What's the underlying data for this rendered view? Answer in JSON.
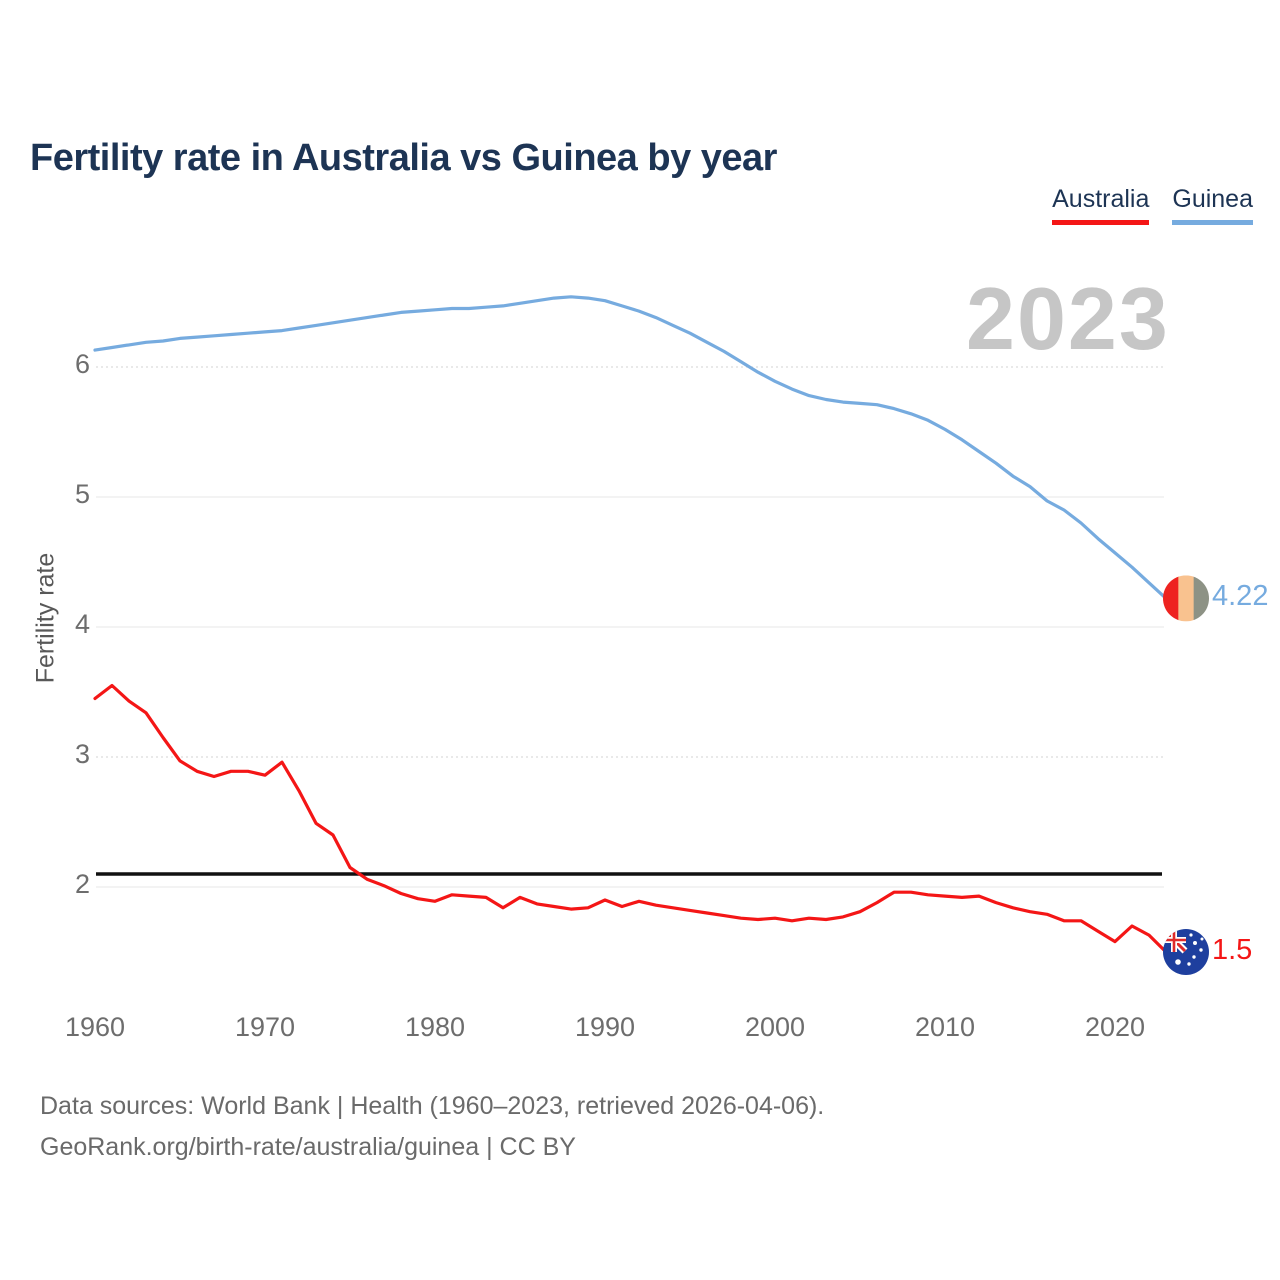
{
  "title": "Fertility rate in Australia vs Guinea by year",
  "watermark": "2023",
  "legend": {
    "australia": {
      "label": "Australia",
      "color": "#f41616"
    },
    "guinea": {
      "label": "Guinea",
      "color": "#76abdf"
    }
  },
  "y_axis": {
    "label": "Fertility rate",
    "ticks": [
      6,
      5,
      4,
      3,
      2
    ]
  },
  "x_axis": {
    "ticks": [
      1960,
      1970,
      1980,
      1990,
      2000,
      2010,
      2020
    ]
  },
  "end_labels": {
    "guinea": "4.22",
    "australia": "1.5"
  },
  "footer": {
    "line1": "Data sources: World Bank | Health (1960–2023, retrieved 2026-04-06).",
    "line2": "GeoRank.org/birth-rate/australia/guinea | CC BY"
  },
  "icons": {
    "guinea_end_dot": "guinea-flag-icon",
    "australia_end_dot": "australia-flag-icon"
  },
  "colors": {
    "title": "#1d3454",
    "watermark": "#c6c6c6",
    "axis_text": "#6d6d6d",
    "grid_solid": "#ececec",
    "grid_dotted": "#dcdcdc",
    "australia": "#f41616",
    "guinea": "#76abdf",
    "reference_line": "#111111",
    "guinea_flag": {
      "red": "#ee2320",
      "yellow": "#f9c28f",
      "green": "#8d9285"
    },
    "australia_flag": {
      "blue": "#1e3f9e",
      "red": "#e02a2a",
      "white": "#ffffff"
    }
  },
  "chart_data": {
    "type": "line",
    "title": "Fertility rate in Australia vs Guinea by year",
    "xlabel": "",
    "ylabel": "Fertility rate",
    "xlim": [
      1960,
      2023
    ],
    "ylim": [
      1.3,
      6.8
    ],
    "grid": "horizontal",
    "legend_position": "top-right",
    "reference_line": {
      "value": 2.1,
      "color": "#111111"
    },
    "x": [
      1960,
      1961,
      1962,
      1963,
      1964,
      1965,
      1966,
      1967,
      1968,
      1969,
      1970,
      1971,
      1972,
      1973,
      1974,
      1975,
      1976,
      1977,
      1978,
      1979,
      1980,
      1981,
      1982,
      1983,
      1984,
      1985,
      1986,
      1987,
      1988,
      1989,
      1990,
      1991,
      1992,
      1993,
      1994,
      1995,
      1996,
      1997,
      1998,
      1999,
      2000,
      2001,
      2002,
      2003,
      2004,
      2005,
      2006,
      2007,
      2008,
      2009,
      2010,
      2011,
      2012,
      2013,
      2014,
      2015,
      2016,
      2017,
      2018,
      2019,
      2020,
      2021,
      2022,
      2023
    ],
    "series": [
      {
        "name": "Australia",
        "color": "#f41616",
        "end_label": "1.5",
        "values": [
          3.45,
          3.55,
          3.43,
          3.34,
          3.15,
          2.97,
          2.89,
          2.85,
          2.89,
          2.89,
          2.86,
          2.96,
          2.74,
          2.49,
          2.4,
          2.15,
          2.06,
          2.01,
          1.95,
          1.91,
          1.89,
          1.94,
          1.93,
          1.92,
          1.84,
          1.92,
          1.87,
          1.85,
          1.83,
          1.84,
          1.9,
          1.85,
          1.89,
          1.86,
          1.84,
          1.82,
          1.8,
          1.78,
          1.76,
          1.75,
          1.76,
          1.74,
          1.76,
          1.75,
          1.77,
          1.81,
          1.88,
          1.96,
          1.96,
          1.94,
          1.93,
          1.92,
          1.93,
          1.88,
          1.84,
          1.81,
          1.79,
          1.74,
          1.74,
          1.66,
          1.58,
          1.7,
          1.63,
          1.5
        ]
      },
      {
        "name": "Guinea",
        "color": "#76abdf",
        "end_label": "4.22",
        "values": [
          6.13,
          6.15,
          6.17,
          6.19,
          6.2,
          6.22,
          6.23,
          6.24,
          6.25,
          6.26,
          6.27,
          6.28,
          6.3,
          6.32,
          6.34,
          6.36,
          6.38,
          6.4,
          6.42,
          6.43,
          6.44,
          6.45,
          6.45,
          6.46,
          6.47,
          6.49,
          6.51,
          6.53,
          6.54,
          6.53,
          6.51,
          6.47,
          6.43,
          6.38,
          6.32,
          6.26,
          6.19,
          6.12,
          6.04,
          5.96,
          5.89,
          5.83,
          5.78,
          5.75,
          5.73,
          5.72,
          5.71,
          5.68,
          5.64,
          5.59,
          5.52,
          5.44,
          5.35,
          5.26,
          5.16,
          5.08,
          4.97,
          4.9,
          4.8,
          4.68,
          4.57,
          4.46,
          4.34,
          4.22
        ]
      }
    ]
  }
}
